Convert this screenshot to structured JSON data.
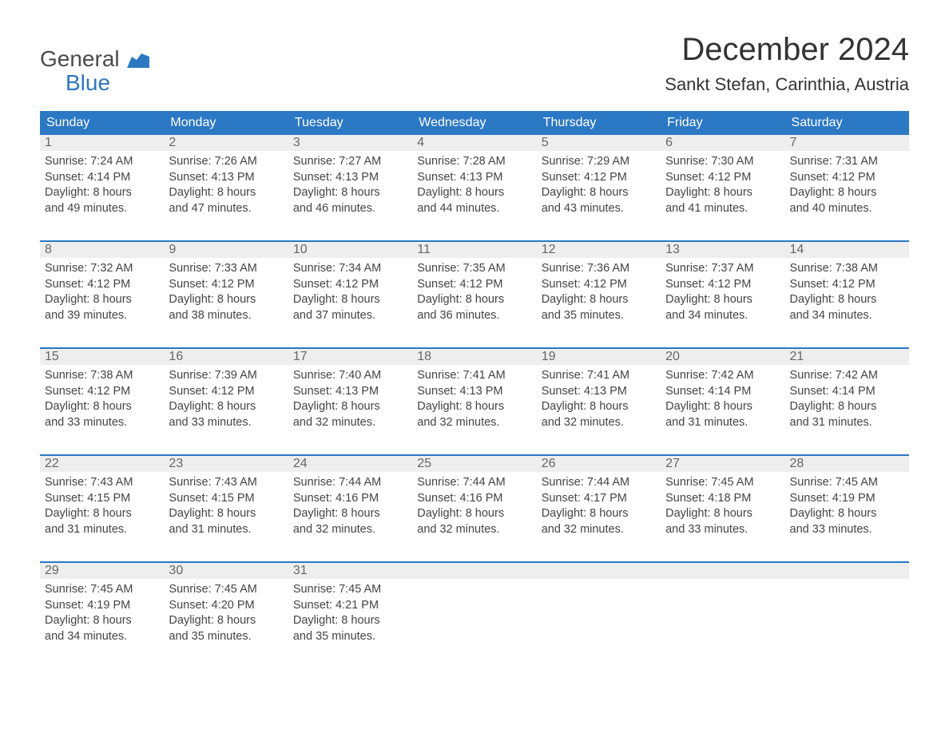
{
  "logo": {
    "top": "General",
    "bottom": "Blue"
  },
  "title": "December 2024",
  "location": "Sankt Stefan, Carinthia, Austria",
  "colors": {
    "header_bg": "#2b78c5",
    "header_text": "#ffffff",
    "daynum_bg": "#eeeeee",
    "daynum_text": "#666666",
    "body_text": "#444444",
    "week_border": "#2b78c5",
    "logo_top": "#4a4a4a",
    "logo_bottom": "#2b78c5",
    "page_bg": "#ffffff"
  },
  "fonts": {
    "title_size_pt": 30,
    "location_size_pt": 17,
    "header_size_pt": 12,
    "daynum_size_pt": 12,
    "content_size_pt": 11
  },
  "weekdays": [
    "Sunday",
    "Monday",
    "Tuesday",
    "Wednesday",
    "Thursday",
    "Friday",
    "Saturday"
  ],
  "weeks": [
    [
      {
        "n": "1",
        "sunrise": "Sunrise: 7:24 AM",
        "sunset": "Sunset: 4:14 PM",
        "d1": "Daylight: 8 hours",
        "d2": "and 49 minutes."
      },
      {
        "n": "2",
        "sunrise": "Sunrise: 7:26 AM",
        "sunset": "Sunset: 4:13 PM",
        "d1": "Daylight: 8 hours",
        "d2": "and 47 minutes."
      },
      {
        "n": "3",
        "sunrise": "Sunrise: 7:27 AM",
        "sunset": "Sunset: 4:13 PM",
        "d1": "Daylight: 8 hours",
        "d2": "and 46 minutes."
      },
      {
        "n": "4",
        "sunrise": "Sunrise: 7:28 AM",
        "sunset": "Sunset: 4:13 PM",
        "d1": "Daylight: 8 hours",
        "d2": "and 44 minutes."
      },
      {
        "n": "5",
        "sunrise": "Sunrise: 7:29 AM",
        "sunset": "Sunset: 4:12 PM",
        "d1": "Daylight: 8 hours",
        "d2": "and 43 minutes."
      },
      {
        "n": "6",
        "sunrise": "Sunrise: 7:30 AM",
        "sunset": "Sunset: 4:12 PM",
        "d1": "Daylight: 8 hours",
        "d2": "and 41 minutes."
      },
      {
        "n": "7",
        "sunrise": "Sunrise: 7:31 AM",
        "sunset": "Sunset: 4:12 PM",
        "d1": "Daylight: 8 hours",
        "d2": "and 40 minutes."
      }
    ],
    [
      {
        "n": "8",
        "sunrise": "Sunrise: 7:32 AM",
        "sunset": "Sunset: 4:12 PM",
        "d1": "Daylight: 8 hours",
        "d2": "and 39 minutes."
      },
      {
        "n": "9",
        "sunrise": "Sunrise: 7:33 AM",
        "sunset": "Sunset: 4:12 PM",
        "d1": "Daylight: 8 hours",
        "d2": "and 38 minutes."
      },
      {
        "n": "10",
        "sunrise": "Sunrise: 7:34 AM",
        "sunset": "Sunset: 4:12 PM",
        "d1": "Daylight: 8 hours",
        "d2": "and 37 minutes."
      },
      {
        "n": "11",
        "sunrise": "Sunrise: 7:35 AM",
        "sunset": "Sunset: 4:12 PM",
        "d1": "Daylight: 8 hours",
        "d2": "and 36 minutes."
      },
      {
        "n": "12",
        "sunrise": "Sunrise: 7:36 AM",
        "sunset": "Sunset: 4:12 PM",
        "d1": "Daylight: 8 hours",
        "d2": "and 35 minutes."
      },
      {
        "n": "13",
        "sunrise": "Sunrise: 7:37 AM",
        "sunset": "Sunset: 4:12 PM",
        "d1": "Daylight: 8 hours",
        "d2": "and 34 minutes."
      },
      {
        "n": "14",
        "sunrise": "Sunrise: 7:38 AM",
        "sunset": "Sunset: 4:12 PM",
        "d1": "Daylight: 8 hours",
        "d2": "and 34 minutes."
      }
    ],
    [
      {
        "n": "15",
        "sunrise": "Sunrise: 7:38 AM",
        "sunset": "Sunset: 4:12 PM",
        "d1": "Daylight: 8 hours",
        "d2": "and 33 minutes."
      },
      {
        "n": "16",
        "sunrise": "Sunrise: 7:39 AM",
        "sunset": "Sunset: 4:12 PM",
        "d1": "Daylight: 8 hours",
        "d2": "and 33 minutes."
      },
      {
        "n": "17",
        "sunrise": "Sunrise: 7:40 AM",
        "sunset": "Sunset: 4:13 PM",
        "d1": "Daylight: 8 hours",
        "d2": "and 32 minutes."
      },
      {
        "n": "18",
        "sunrise": "Sunrise: 7:41 AM",
        "sunset": "Sunset: 4:13 PM",
        "d1": "Daylight: 8 hours",
        "d2": "and 32 minutes."
      },
      {
        "n": "19",
        "sunrise": "Sunrise: 7:41 AM",
        "sunset": "Sunset: 4:13 PM",
        "d1": "Daylight: 8 hours",
        "d2": "and 32 minutes."
      },
      {
        "n": "20",
        "sunrise": "Sunrise: 7:42 AM",
        "sunset": "Sunset: 4:14 PM",
        "d1": "Daylight: 8 hours",
        "d2": "and 31 minutes."
      },
      {
        "n": "21",
        "sunrise": "Sunrise: 7:42 AM",
        "sunset": "Sunset: 4:14 PM",
        "d1": "Daylight: 8 hours",
        "d2": "and 31 minutes."
      }
    ],
    [
      {
        "n": "22",
        "sunrise": "Sunrise: 7:43 AM",
        "sunset": "Sunset: 4:15 PM",
        "d1": "Daylight: 8 hours",
        "d2": "and 31 minutes."
      },
      {
        "n": "23",
        "sunrise": "Sunrise: 7:43 AM",
        "sunset": "Sunset: 4:15 PM",
        "d1": "Daylight: 8 hours",
        "d2": "and 31 minutes."
      },
      {
        "n": "24",
        "sunrise": "Sunrise: 7:44 AM",
        "sunset": "Sunset: 4:16 PM",
        "d1": "Daylight: 8 hours",
        "d2": "and 32 minutes."
      },
      {
        "n": "25",
        "sunrise": "Sunrise: 7:44 AM",
        "sunset": "Sunset: 4:16 PM",
        "d1": "Daylight: 8 hours",
        "d2": "and 32 minutes."
      },
      {
        "n": "26",
        "sunrise": "Sunrise: 7:44 AM",
        "sunset": "Sunset: 4:17 PM",
        "d1": "Daylight: 8 hours",
        "d2": "and 32 minutes."
      },
      {
        "n": "27",
        "sunrise": "Sunrise: 7:45 AM",
        "sunset": "Sunset: 4:18 PM",
        "d1": "Daylight: 8 hours",
        "d2": "and 33 minutes."
      },
      {
        "n": "28",
        "sunrise": "Sunrise: 7:45 AM",
        "sunset": "Sunset: 4:19 PM",
        "d1": "Daylight: 8 hours",
        "d2": "and 33 minutes."
      }
    ],
    [
      {
        "n": "29",
        "sunrise": "Sunrise: 7:45 AM",
        "sunset": "Sunset: 4:19 PM",
        "d1": "Daylight: 8 hours",
        "d2": "and 34 minutes."
      },
      {
        "n": "30",
        "sunrise": "Sunrise: 7:45 AM",
        "sunset": "Sunset: 4:20 PM",
        "d1": "Daylight: 8 hours",
        "d2": "and 35 minutes."
      },
      {
        "n": "31",
        "sunrise": "Sunrise: 7:45 AM",
        "sunset": "Sunset: 4:21 PM",
        "d1": "Daylight: 8 hours",
        "d2": "and 35 minutes."
      },
      {
        "n": "",
        "empty": true
      },
      {
        "n": "",
        "empty": true
      },
      {
        "n": "",
        "empty": true
      },
      {
        "n": "",
        "empty": true
      }
    ]
  ]
}
